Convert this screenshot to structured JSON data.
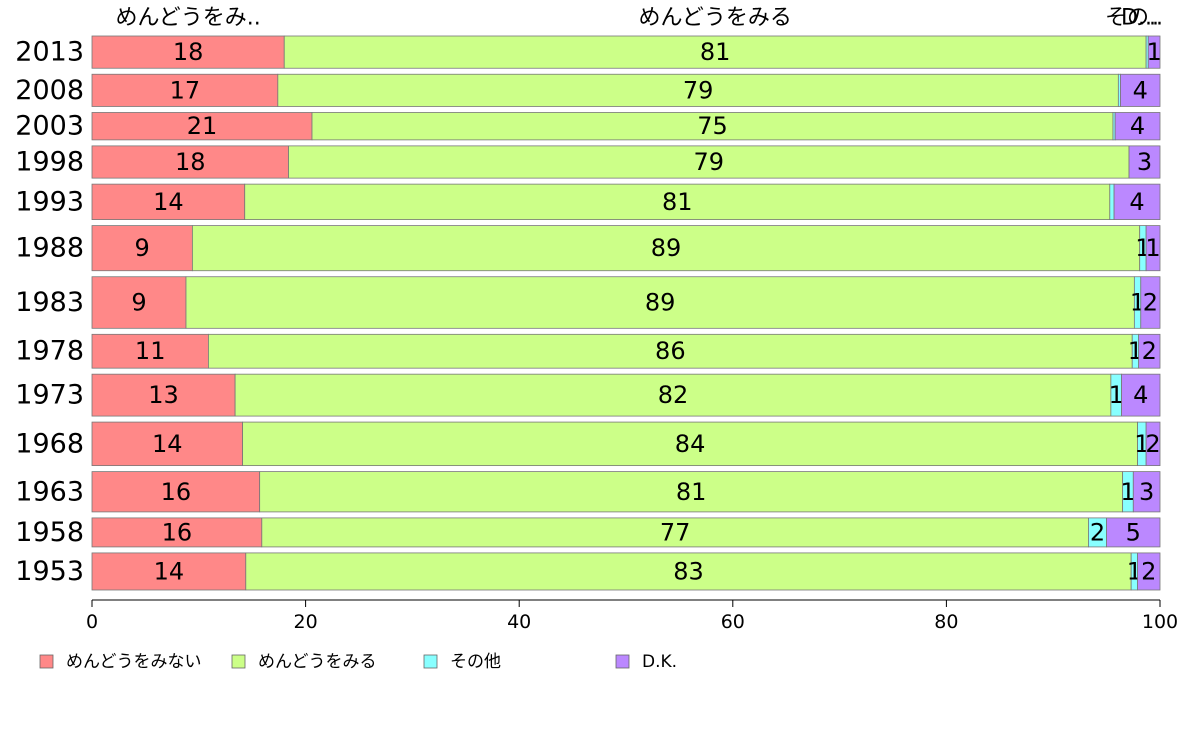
{
  "chart_data": {
    "type": "bar",
    "orientation": "horizontal",
    "stacked": "percent",
    "categories": [
      "2013",
      "2008",
      "2003",
      "1998",
      "1993",
      "1988",
      "1983",
      "1978",
      "1973",
      "1968",
      "1963",
      "1958",
      "1953"
    ],
    "series": [
      {
        "name": "めんどうをみない",
        "color": "#ff8888",
        "values": [
          18,
          17,
          21,
          18,
          14,
          9,
          9,
          11,
          13,
          14,
          16,
          16,
          14
        ],
        "shares": [
          0.18,
          0.174,
          0.206,
          0.184,
          0.143,
          0.094,
          0.088,
          0.109,
          0.134,
          0.141,
          0.157,
          0.159,
          0.144
        ]
      },
      {
        "name": "めんどうをみる",
        "color": "#ccff88",
        "values": [
          81,
          79,
          75,
          79,
          81,
          89,
          89,
          86,
          82,
          84,
          81,
          77,
          83
        ],
        "shares": [
          0.807,
          0.787,
          0.75,
          0.787,
          0.81,
          0.887,
          0.888,
          0.865,
          0.82,
          0.838,
          0.808,
          0.774,
          0.829
        ]
      },
      {
        "name": "その他",
        "color": "#88ffff",
        "values": [
          0,
          0,
          0,
          0,
          0,
          1,
          1,
          1,
          1,
          1,
          1,
          2,
          1
        ],
        "shares": [
          0.002,
          0.002,
          0.002,
          0.0,
          0.004,
          0.006,
          0.006,
          0.006,
          0.01,
          0.008,
          0.01,
          0.017,
          0.006
        ]
      },
      {
        "name": "D.K.",
        "color": "#bb88ff",
        "values": [
          1,
          4,
          4,
          3,
          4,
          1,
          2,
          2,
          4,
          2,
          3,
          5,
          2
        ],
        "shares": [
          0.011,
          0.037,
          0.042,
          0.029,
          0.043,
          0.013,
          0.018,
          0.02,
          0.036,
          0.013,
          0.025,
          0.05,
          0.021
        ]
      }
    ],
    "row_weights": [
      1,
      1,
      0.85,
      1,
      1.1,
      1.4,
      1.6,
      1.05,
      1.3,
      1.35,
      1.25,
      0.9,
      1.15
    ],
    "top_labels": [
      "めんどうをみ..",
      "めんどうをみる",
      "その..",
      "D..."
    ],
    "xlim": [
      0,
      100
    ],
    "xticks": [
      0,
      20,
      40,
      60,
      80,
      100
    ],
    "grid": false,
    "legend_position": "bottom"
  }
}
